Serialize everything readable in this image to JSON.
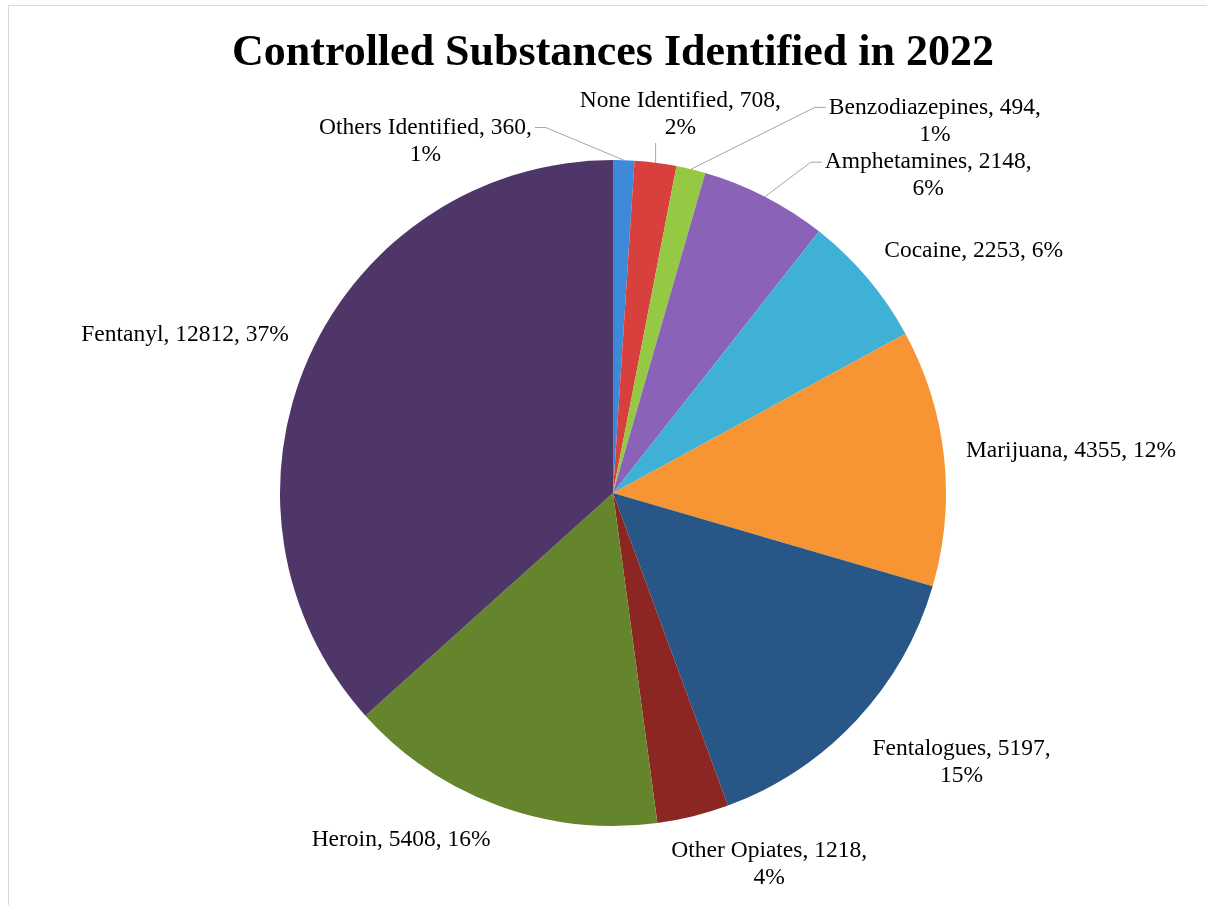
{
  "chart_data": {
    "type": "pie",
    "title": "Controlled Substances Identified in 2022",
    "categories": [
      "Others Identified",
      "None Identified",
      "Benzodiazepines",
      "Amphetamines",
      "Cocaine",
      "Marijuana",
      "Fentalogues",
      "Other Opiates",
      "Heroin",
      "Fentanyl"
    ],
    "values": [
      360,
      708,
      494,
      2148,
      2253,
      4355,
      5197,
      1218,
      5408,
      12812
    ],
    "colors": [
      "#3f8ad8",
      "#d8403e",
      "#95c843",
      "#8a63b9",
      "#3fb1d6",
      "#f79433",
      "#275687",
      "#8c2623",
      "#64852b",
      "#4e3668"
    ],
    "value_labels": [
      "360, 1%",
      "708, 2%",
      "494, 1%",
      "2148, 6%",
      "2253, 6%",
      "4355, 12%",
      "5197, 15%",
      "1218, 4%",
      "5408, 16%",
      "12812, 37%"
    ]
  }
}
